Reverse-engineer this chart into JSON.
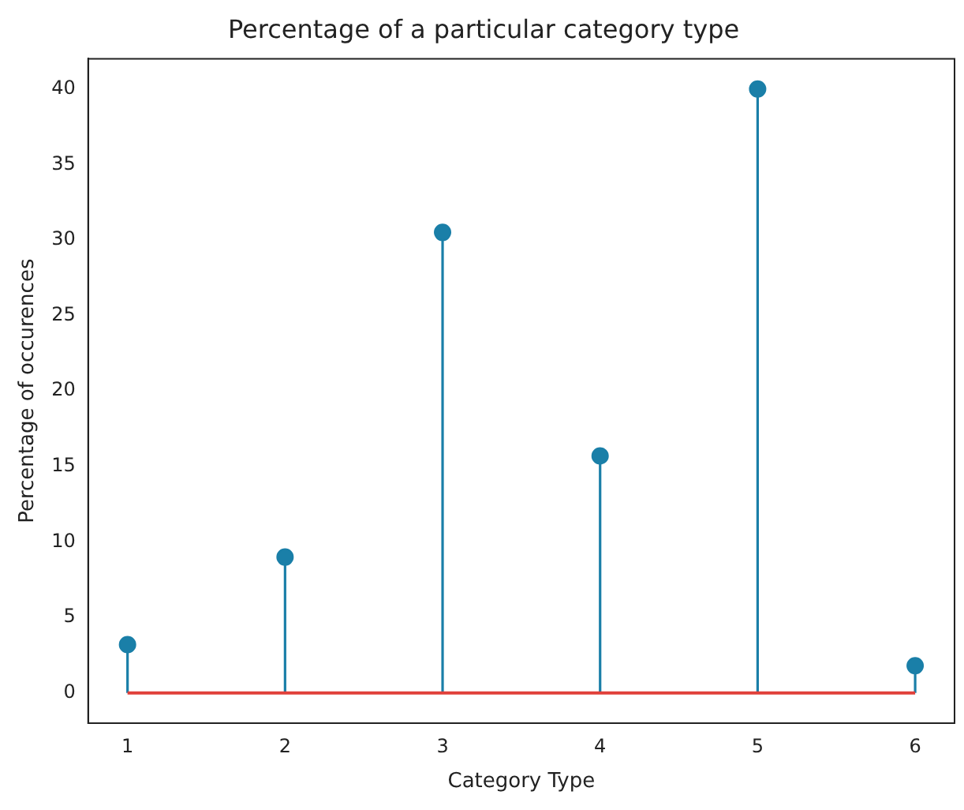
{
  "chart_data": {
    "type": "lollipop",
    "title": "Percentage of a particular category type",
    "xlabel": "Category Type",
    "ylabel": "Percentage of occurences",
    "x": [
      1,
      2,
      3,
      4,
      5,
      6
    ],
    "series": [
      {
        "color": "#1a7fa8",
        "values": [
          3.2,
          9.0,
          30.5,
          15.7,
          40.0,
          1.8
        ]
      }
    ],
    "xlim": [
      0.75,
      6.25
    ],
    "xticks": [
      1,
      2,
      3,
      4,
      5,
      6
    ],
    "ylim": [
      -2,
      42
    ],
    "yticks": [
      0,
      5,
      10,
      15,
      20,
      25,
      30,
      35,
      40
    ],
    "ref_lines": [
      {
        "axis": "y",
        "value": 0,
        "color": "#e0403a"
      }
    ],
    "grid": false,
    "legend": false,
    "marker": "circle"
  }
}
